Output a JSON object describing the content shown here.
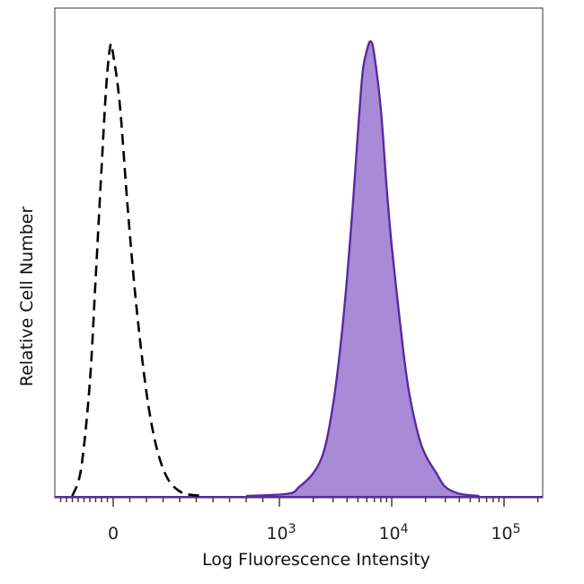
{
  "chart_data": {
    "type": "area",
    "title": "",
    "xlabel": "Log Fluorescence Intensity",
    "ylabel": "Relative Cell Number",
    "x_scale": "biexponential",
    "xlim": [
      -1000,
      250000
    ],
    "ylim": [
      0,
      100
    ],
    "grid": false,
    "legend": "none",
    "x_ticks": [
      {
        "value": 0,
        "base": "0",
        "exp": ""
      },
      {
        "value": 1000,
        "base": "10",
        "exp": "3"
      },
      {
        "value": 10000,
        "base": "10",
        "exp": "4"
      },
      {
        "value": 100000,
        "base": "10",
        "exp": "5"
      }
    ],
    "series": [
      {
        "style": "dashed",
        "color": "#000000",
        "fill": "none",
        "x": [
          -700,
          -550,
          -400,
          -300,
          -200,
          -120,
          -50,
          0,
          40,
          90,
          150,
          220,
          300,
          400,
          550
        ],
        "y": [
          0,
          6,
          25,
          48,
          72,
          90,
          99,
          97,
          86,
          62,
          38,
          18,
          6,
          1,
          0
        ]
      },
      {
        "style": "solid",
        "color": "#5a2aa0",
        "fill": "#a98ad6",
        "x": [
          800,
          1200,
          1500,
          2000,
          2500,
          3000,
          3500,
          4000,
          4500,
          5000,
          5500,
          6000,
          6500,
          7000,
          8000,
          9000,
          10000,
          12000,
          14000,
          17000,
          20000,
          25000,
          30000,
          40000,
          60000
        ],
        "y": [
          0,
          0.5,
          2,
          5,
          10,
          20,
          33,
          48,
          64,
          80,
          93,
          98,
          100,
          97,
          85,
          68,
          55,
          37,
          24,
          14,
          9,
          5,
          2,
          0.5,
          0
        ]
      }
    ]
  }
}
